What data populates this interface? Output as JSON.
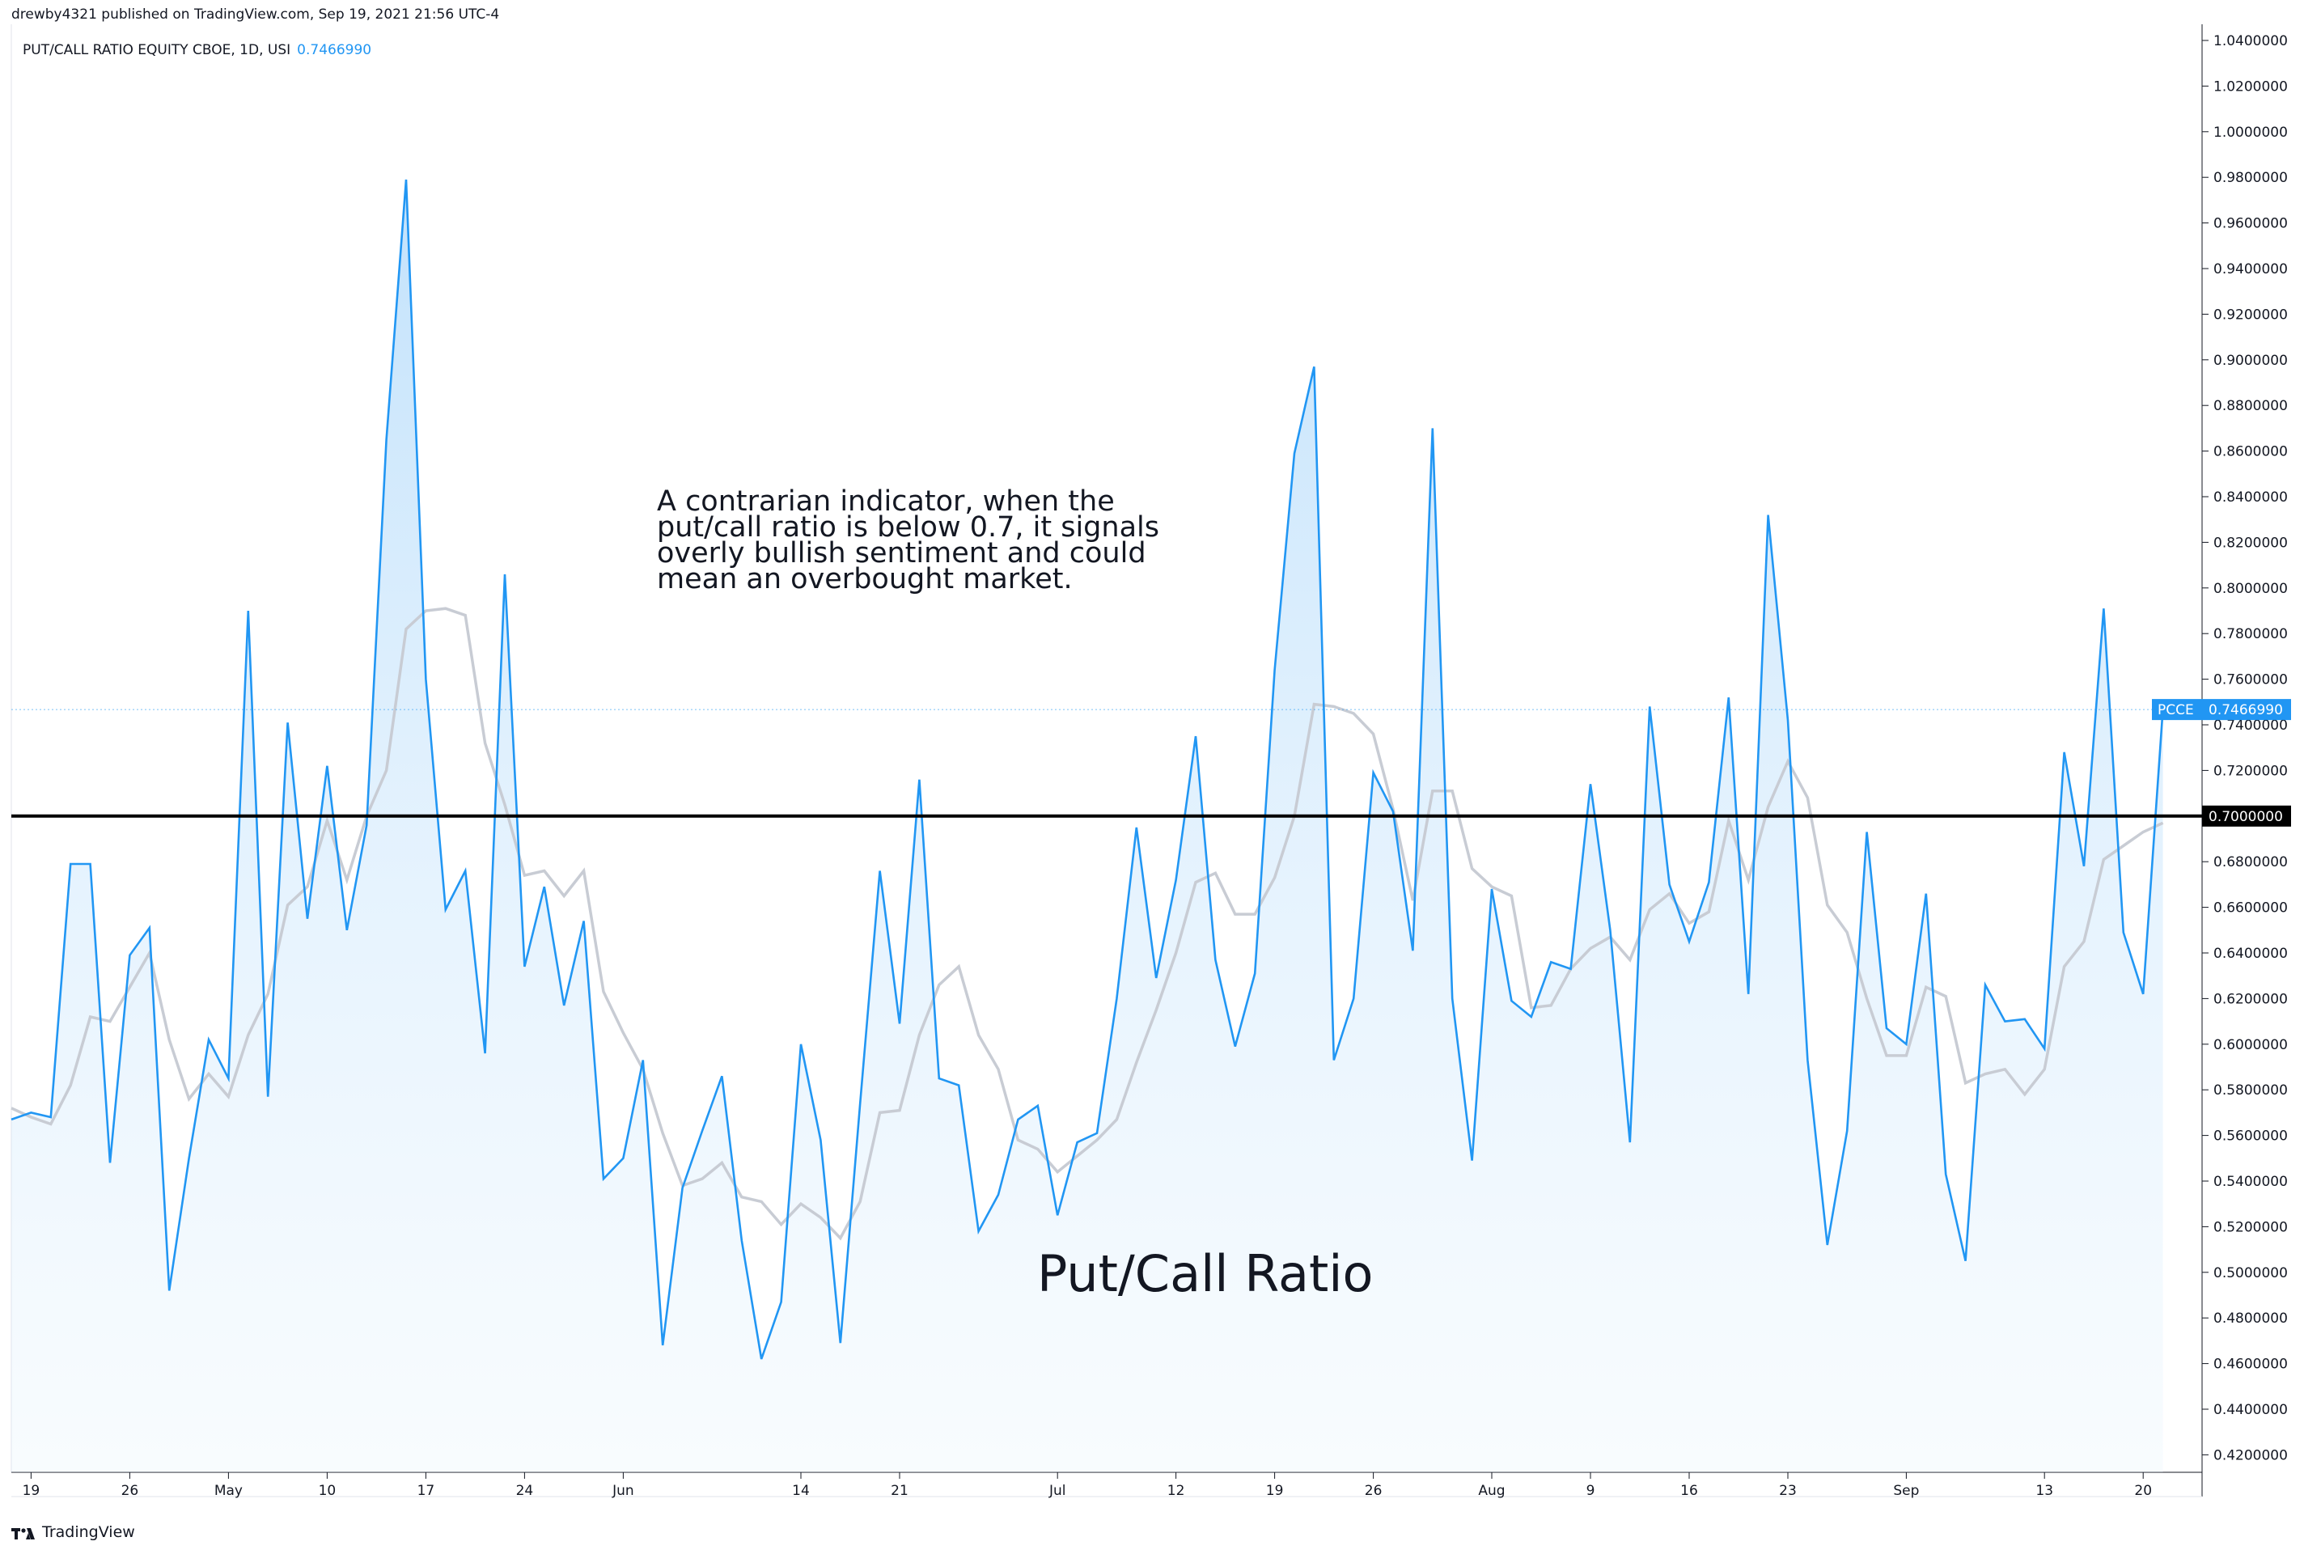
{
  "header": {
    "publisher": "drewby4321 published on TradingView.com, Sep 19, 2021 21:56 UTC-4",
    "symbol_line": "PUT/CALL RATIO EQUITY CBOE, 1D, USI",
    "symbol_value": "0.7466990"
  },
  "annotation": {
    "lines": [
      "A contrarian indicator, when the",
      "put/call ratio is below 0.7, it signals",
      "overly bullish sentiment and could",
      "mean an overbought market."
    ]
  },
  "big_label": "Put/Call Ratio",
  "brand": "TradingView",
  "colors": {
    "series": "#2196f3",
    "sma": "#c8ccd4",
    "hline": "#000000",
    "fill_top": "#bbdefb",
    "fill_bottom": "#ffffff"
  },
  "chart_data": {
    "type": "area",
    "title": "PUT/CALL RATIO EQUITY CBOE, 1D, USI",
    "ylim": [
      0.41,
      1.043
    ],
    "y_ticks": [
      "1.0400000",
      "1.0200000",
      "1.0000000",
      "0.9800000",
      "0.9600000",
      "0.9400000",
      "0.9200000",
      "0.9000000",
      "0.8800000",
      "0.8600000",
      "0.8400000",
      "0.8200000",
      "0.8000000",
      "0.7800000",
      "0.7600000",
      "0.7400000",
      "0.7200000",
      "0.7000000",
      "0.6800000",
      "0.6600000",
      "0.6400000",
      "0.6200000",
      "0.6000000",
      "0.5800000",
      "0.5600000",
      "0.5400000",
      "0.5200000",
      "0.5000000",
      "0.4800000",
      "0.4600000",
      "0.4400000",
      "0.4200000"
    ],
    "x_ticks": [
      "19",
      "26",
      "May",
      "10",
      "17",
      "24",
      "Jun",
      "14",
      "21",
      "Jul",
      "12",
      "19",
      "26",
      "Aug",
      "9",
      "16",
      "23",
      "Sep",
      "13",
      "20"
    ],
    "x_tick_positions": [
      1,
      6,
      11,
      16,
      21,
      26,
      31,
      40,
      45,
      53,
      59,
      64,
      69,
      75,
      80,
      85,
      90,
      96,
      103,
      108
    ],
    "hline": {
      "value": 0.7,
      "label": "0.7000000"
    },
    "last_value": {
      "value": 0.746699,
      "label": "0.7466990",
      "tag": "PCCE"
    },
    "series": [
      {
        "name": "PCCE",
        "values": [
          0.567,
          0.57,
          0.568,
          0.679,
          0.679,
          0.548,
          0.639,
          0.651,
          0.492,
          0.55,
          0.602,
          0.585,
          0.79,
          0.577,
          0.741,
          0.655,
          0.722,
          0.65,
          0.696,
          0.865,
          0.979,
          0.76,
          0.659,
          0.676,
          0.596,
          0.806,
          0.634,
          0.669,
          0.617,
          0.654,
          0.541,
          0.55,
          0.593,
          0.468,
          0.537,
          0.562,
          0.586,
          0.514,
          0.462,
          0.487,
          0.6,
          0.558,
          0.469,
          0.574,
          0.676,
          0.609,
          0.716,
          0.585,
          0.582,
          0.518,
          0.534,
          0.567,
          0.573,
          0.525,
          0.557,
          0.561,
          0.62,
          0.695,
          0.629,
          0.672,
          0.735,
          0.637,
          0.599,
          0.631,
          0.764,
          0.859,
          0.897,
          0.593,
          0.62,
          0.719,
          0.702,
          0.641,
          0.87,
          0.62,
          0.549,
          0.668,
          0.619,
          0.612,
          0.636,
          0.633,
          0.714,
          0.65,
          0.557,
          0.748,
          0.67,
          0.645,
          0.671,
          0.752,
          0.622,
          0.832,
          0.742,
          0.593,
          0.512,
          0.562,
          0.693,
          0.607,
          0.6,
          0.666,
          0.543,
          0.505,
          0.626,
          0.61,
          0.611,
          0.598,
          0.728,
          0.678,
          0.791,
          0.649,
          0.622,
          0.747
        ]
      },
      {
        "name": "SMA",
        "values": [
          0.572,
          0.568,
          0.565,
          0.582,
          0.612,
          0.61,
          0.625,
          0.64,
          0.602,
          0.576,
          0.587,
          0.577,
          0.604,
          0.622,
          0.661,
          0.669,
          0.698,
          0.672,
          0.7,
          0.72,
          0.782,
          0.79,
          0.791,
          0.788,
          0.732,
          0.705,
          0.674,
          0.676,
          0.665,
          0.676,
          0.623,
          0.605,
          0.589,
          0.561,
          0.538,
          0.541,
          0.548,
          0.533,
          0.531,
          0.521,
          0.53,
          0.524,
          0.515,
          0.531,
          0.57,
          0.571,
          0.604,
          0.626,
          0.634,
          0.604,
          0.589,
          0.558,
          0.554,
          0.544,
          0.551,
          0.558,
          0.567,
          0.592,
          0.615,
          0.64,
          0.671,
          0.675,
          0.657,
          0.657,
          0.673,
          0.7,
          0.749,
          0.748,
          0.745,
          0.736,
          0.703,
          0.663,
          0.711,
          0.711,
          0.677,
          0.669,
          0.665,
          0.616,
          0.617,
          0.633,
          0.642,
          0.647,
          0.637,
          0.659,
          0.666,
          0.653,
          0.658,
          0.698,
          0.672,
          0.704,
          0.724,
          0.708,
          0.661,
          0.649,
          0.62,
          0.595,
          0.595,
          0.625,
          0.621,
          0.583,
          0.587,
          0.589,
          0.578,
          0.589,
          0.634,
          0.645,
          0.681,
          0.687,
          0.693,
          0.697
        ]
      }
    ],
    "grid": false,
    "legend": "none"
  }
}
